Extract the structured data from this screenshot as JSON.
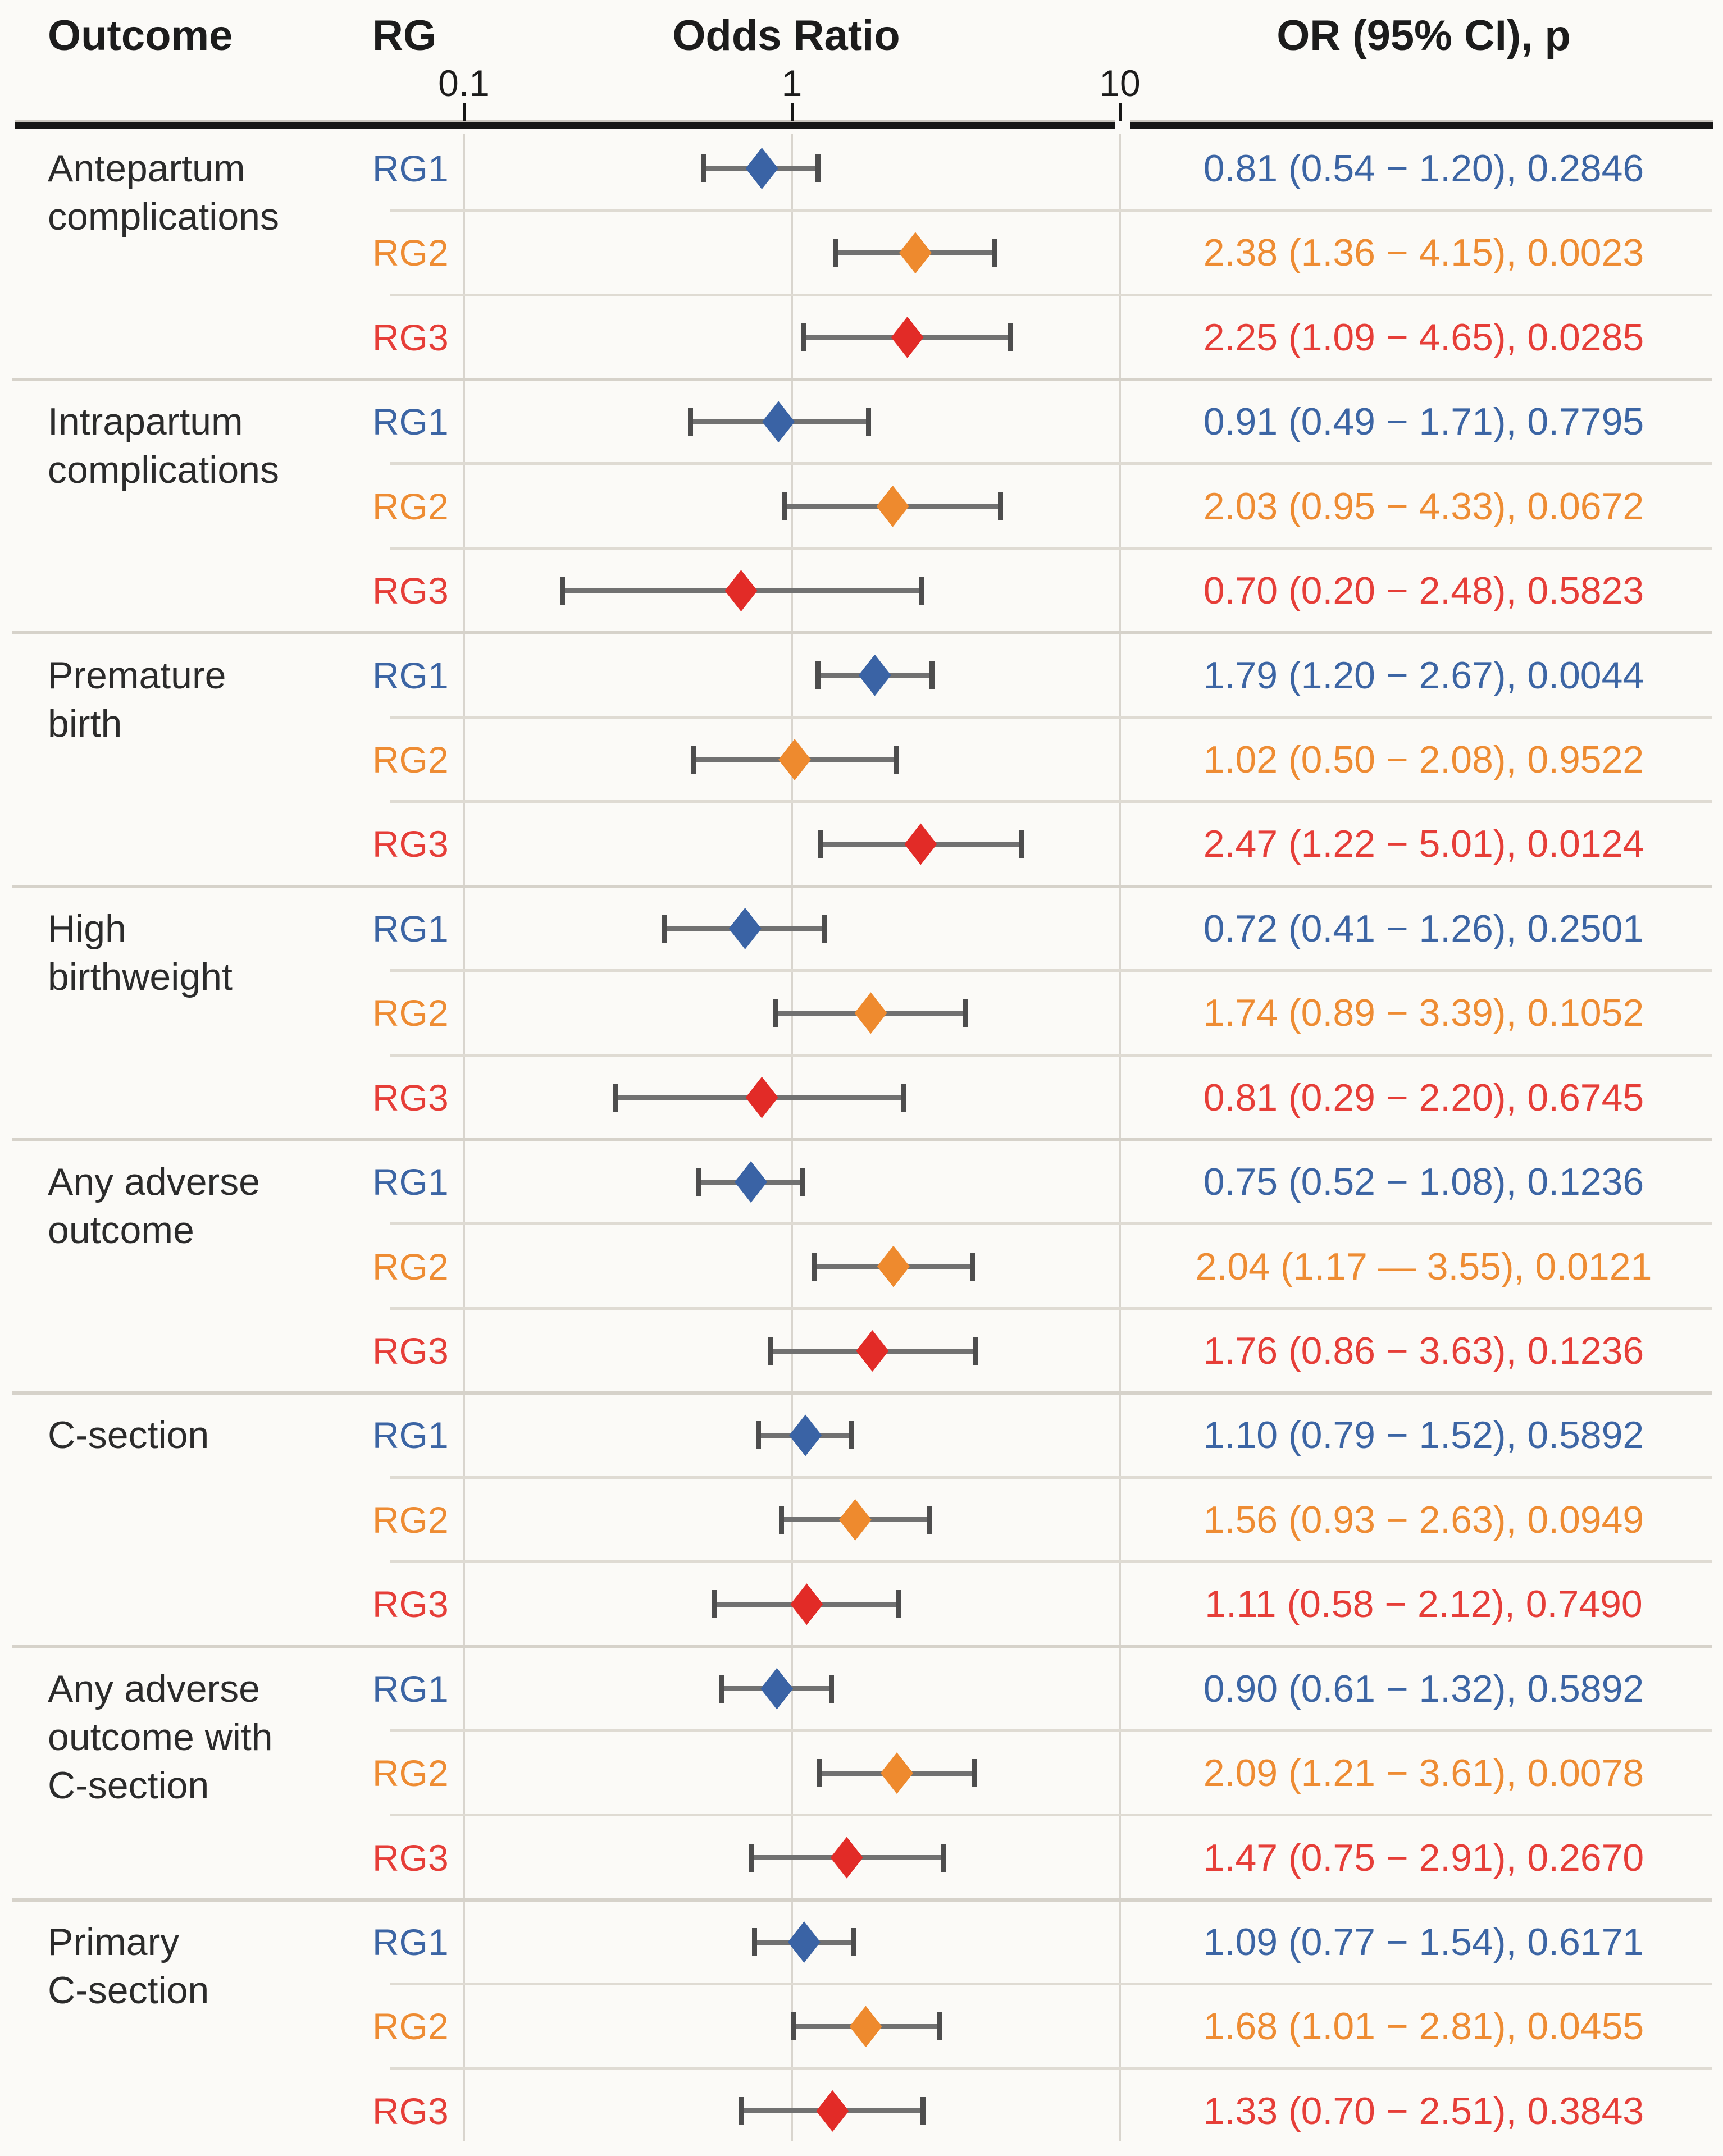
{
  "header": {
    "outcome": "Outcome",
    "rg": "RG",
    "odds_ratio": "Odds Ratio",
    "or_ci_p": "OR (95% CI), p"
  },
  "colors": {
    "background": "#FBFAF7",
    "heading_text": "#1C1C1C",
    "outcome_text": "#2B2B2B",
    "grid": "#D9D5CE",
    "separator": "#DFDBD3",
    "group_separator": "#D6D2CA",
    "rule": "#161616",
    "error_bar": "#717171",
    "error_cap": "#4D4D4D",
    "rg1_text": "#3C65A4",
    "rg1_marker": "#3A63A5",
    "rg2_text": "#EE8C33",
    "rg2_marker": "#EE8A2E",
    "rg3_text": "#E63E38",
    "rg3_marker": "#E22B27"
  },
  "chart_data": {
    "type": "forest",
    "title": "Odds Ratio",
    "x_axis": {
      "scale": "log",
      "min": 0.1,
      "max": 10,
      "ticks": [
        {
          "label": "0.1",
          "value": 0.1
        },
        {
          "label": "1",
          "value": 1
        },
        {
          "label": "10",
          "value": 10
        }
      ]
    },
    "legend": [
      "RG1",
      "RG2",
      "RG3"
    ],
    "groups": [
      {
        "outcome": "Antepartum complications",
        "outcome_lines": "Antepartum\ncomplications",
        "rows": [
          {
            "rg": "RG1",
            "or": 0.81,
            "ci_low": 0.54,
            "ci_high": 1.2,
            "p": "0.2846",
            "display": "0.81 (0.54 − 1.20), 0.2846"
          },
          {
            "rg": "RG2",
            "or": 2.38,
            "ci_low": 1.36,
            "ci_high": 4.15,
            "p": "0.0023",
            "display": "2.38 (1.36 − 4.15), 0.0023"
          },
          {
            "rg": "RG3",
            "or": 2.25,
            "ci_low": 1.09,
            "ci_high": 4.65,
            "p": "0.0285",
            "display": "2.25 (1.09 − 4.65), 0.0285"
          }
        ]
      },
      {
        "outcome": "Intrapartum complications",
        "outcome_lines": "Intrapartum\ncomplications",
        "rows": [
          {
            "rg": "RG1",
            "or": 0.91,
            "ci_low": 0.49,
            "ci_high": 1.71,
            "p": "0.7795",
            "display": "0.91 (0.49 − 1.71), 0.7795"
          },
          {
            "rg": "RG2",
            "or": 2.03,
            "ci_low": 0.95,
            "ci_high": 4.33,
            "p": "0.0672",
            "display": "2.03 (0.95 − 4.33), 0.0672"
          },
          {
            "rg": "RG3",
            "or": 0.7,
            "ci_low": 0.2,
            "ci_high": 2.48,
            "p": "0.5823",
            "display": "0.70 (0.20 − 2.48), 0.5823"
          }
        ]
      },
      {
        "outcome": "Premature birth",
        "outcome_lines": "Premature\nbirth",
        "rows": [
          {
            "rg": "RG1",
            "or": 1.79,
            "ci_low": 1.2,
            "ci_high": 2.67,
            "p": "0.0044",
            "display": "1.79 (1.20 − 2.67), 0.0044"
          },
          {
            "rg": "RG2",
            "or": 1.02,
            "ci_low": 0.5,
            "ci_high": 2.08,
            "p": "0.9522",
            "display": "1.02 (0.50 − 2.08), 0.9522"
          },
          {
            "rg": "RG3",
            "or": 2.47,
            "ci_low": 1.22,
            "ci_high": 5.01,
            "p": "0.0124",
            "display": "2.47 (1.22 − 5.01), 0.0124"
          }
        ]
      },
      {
        "outcome": "High birthweight",
        "outcome_lines": "High\nbirthweight",
        "rows": [
          {
            "rg": "RG1",
            "or": 0.72,
            "ci_low": 0.41,
            "ci_high": 1.26,
            "p": "0.2501",
            "display": "0.72 (0.41 − 1.26), 0.2501"
          },
          {
            "rg": "RG2",
            "or": 1.74,
            "ci_low": 0.89,
            "ci_high": 3.39,
            "p": "0.1052",
            "display": "1.74 (0.89 − 3.39), 0.1052"
          },
          {
            "rg": "RG3",
            "or": 0.81,
            "ci_low": 0.29,
            "ci_high": 2.2,
            "p": "0.6745",
            "display": "0.81 (0.29 − 2.20), 0.6745"
          }
        ]
      },
      {
        "outcome": "Any adverse outcome",
        "outcome_lines": "Any adverse\noutcome",
        "rows": [
          {
            "rg": "RG1",
            "or": 0.75,
            "ci_low": 0.52,
            "ci_high": 1.08,
            "p": "0.1236",
            "display": "0.75 (0.52 − 1.08), 0.1236"
          },
          {
            "rg": "RG2",
            "or": 2.04,
            "ci_low": 1.17,
            "ci_high": 3.55,
            "p": "0.0121",
            "display": "2.04 (1.17 — 3.55), 0.0121"
          },
          {
            "rg": "RG3",
            "or": 1.76,
            "ci_low": 0.86,
            "ci_high": 3.63,
            "p": "0.1236",
            "display": "1.76 (0.86 − 3.63), 0.1236"
          }
        ]
      },
      {
        "outcome": "C-section",
        "outcome_lines": "C-section",
        "rows": [
          {
            "rg": "RG1",
            "or": 1.1,
            "ci_low": 0.79,
            "ci_high": 1.52,
            "p": "0.5892",
            "display": "1.10 (0.79 − 1.52), 0.5892"
          },
          {
            "rg": "RG2",
            "or": 1.56,
            "ci_low": 0.93,
            "ci_high": 2.63,
            "p": "0.0949",
            "display": "1.56 (0.93 − 2.63), 0.0949"
          },
          {
            "rg": "RG3",
            "or": 1.11,
            "ci_low": 0.58,
            "ci_high": 2.12,
            "p": "0.7490",
            "display": "1.11 (0.58 − 2.12), 0.7490"
          }
        ]
      },
      {
        "outcome": "Any adverse outcome with C-section",
        "outcome_lines": "Any adverse\noutcome with\nC-section",
        "rows": [
          {
            "rg": "RG1",
            "or": 0.9,
            "ci_low": 0.61,
            "ci_high": 1.32,
            "p": "0.5892",
            "display": "0.90 (0.61 − 1.32), 0.5892"
          },
          {
            "rg": "RG2",
            "or": 2.09,
            "ci_low": 1.21,
            "ci_high": 3.61,
            "p": "0.0078",
            "display": "2.09 (1.21 − 3.61), 0.0078"
          },
          {
            "rg": "RG3",
            "or": 1.47,
            "ci_low": 0.75,
            "ci_high": 2.91,
            "p": "0.2670",
            "display": "1.47 (0.75 − 2.91), 0.2670"
          }
        ]
      },
      {
        "outcome": "Primary C-section",
        "outcome_lines": "Primary\nC-section",
        "rows": [
          {
            "rg": "RG1",
            "or": 1.09,
            "ci_low": 0.77,
            "ci_high": 1.54,
            "p": "0.6171",
            "display": "1.09 (0.77 − 1.54), 0.6171"
          },
          {
            "rg": "RG2",
            "or": 1.68,
            "ci_low": 1.01,
            "ci_high": 2.81,
            "p": "0.0455",
            "display": "1.68 (1.01 − 2.81), 0.0455"
          },
          {
            "rg": "RG3",
            "or": 1.33,
            "ci_low": 0.7,
            "ci_high": 2.51,
            "p": "0.3843",
            "display": "1.33 (0.70 − 2.51), 0.3843"
          }
        ]
      }
    ]
  }
}
